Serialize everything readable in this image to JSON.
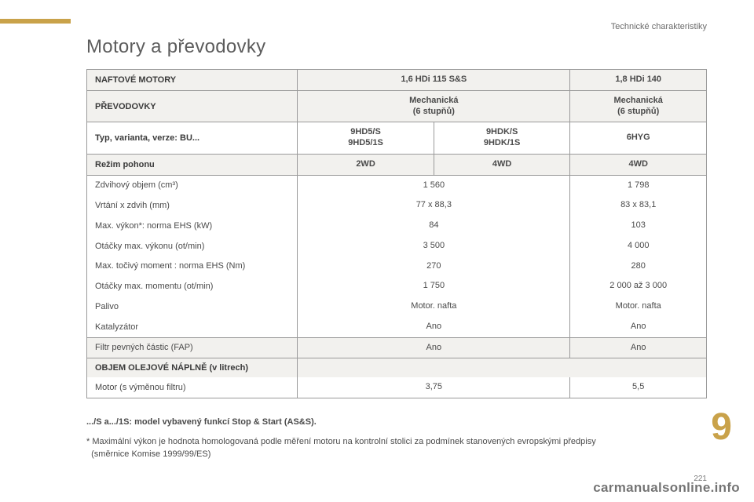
{
  "section_header": "Technické charakteristiky",
  "title": "Motory a převodovky",
  "table": {
    "rows": [
      {
        "shade": true,
        "label": "NAFTOVÉ MOTORY",
        "label_bold": true,
        "c12": "1,6 HDi 115 S&S",
        "c3": "1,8 HDi 140",
        "nowrap": true
      },
      {
        "shade": true,
        "label": "PŘEVODOVKY",
        "label_bold": true,
        "c12": "Mechanická\n(6 stupňů)",
        "c3": "Mechanická\n(6 stupňů)"
      },
      {
        "shade": false,
        "label": "Typ, varianta, verze: BU...",
        "label_bold": true,
        "c1": "9HD5/S\n9HD5/1S",
        "c2": "9HDK/S\n9HDK/1S",
        "c3": "6HYG"
      },
      {
        "shade": true,
        "label": "Režim pohonu",
        "label_bold": true,
        "c1": "2WD",
        "c2": "4WD",
        "c3": "4WD"
      },
      {
        "shade": false,
        "label": "Zdvihový objem (cm³)",
        "c12": "1 560",
        "c3": "1 798"
      },
      {
        "shade": false,
        "label": "Vrtání x zdvih (mm)",
        "c12": "77 x 88,3",
        "c3": "83 x 83,1"
      },
      {
        "shade": false,
        "label": "Max. výkon*: norma EHS (kW)",
        "c12": "84",
        "c3": "103"
      },
      {
        "shade": false,
        "label": "Otáčky max. výkonu (ot/min)",
        "c12": "3 500",
        "c3": "4 000"
      },
      {
        "shade": false,
        "label": "Max. točivý moment : norma EHS (Nm)",
        "c12": "270",
        "c3": "280"
      },
      {
        "shade": false,
        "label": "Otáčky max. momentu (ot/min)",
        "c12": "1 750",
        "c3": "2 000 až 3 000"
      },
      {
        "shade": false,
        "label": "Palivo",
        "c12": "Motor. nafta",
        "c3": "Motor. nafta"
      },
      {
        "shade": false,
        "label": "Katalyzátor",
        "c12": "Ano",
        "c3": "Ano"
      },
      {
        "shade": true,
        "label": "Filtr pevných částic (FAP)",
        "c12": "Ano",
        "c3": "Ano"
      },
      {
        "shade": true,
        "label": "OBJEM OLEJOVÉ NÁPLNĚ (v litrech)",
        "label_bold": true,
        "c12": "",
        "c3": "",
        "header_only": true
      },
      {
        "shade": false,
        "label": "Motor (s výměnou filtru)",
        "c12": "3,75",
        "c3": "5,5"
      }
    ]
  },
  "footnotes": {
    "line1": ".../S a.../1S: model vybavený funkcí Stop & Start (AS&S).",
    "line2": "* Maximální výkon je hodnota homologovaná podle měření motoru na kontrolní stolici za podmínek stanovených evropskými předpisy",
    "line2b": "(směrnice Komise 1999/99/ES)"
  },
  "chapter": "9",
  "page_number": "221",
  "watermark": "carmanualsonline.info",
  "colors": {
    "accent": "#c9a24a",
    "shade": "#f2f1ee",
    "border": "#9a9a9a",
    "text": "#4a4a4a"
  }
}
